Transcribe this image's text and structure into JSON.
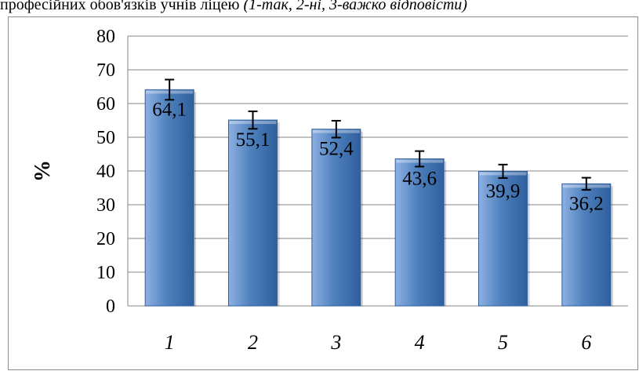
{
  "caption": {
    "text": "професійних обов'язків учнів ліцею ",
    "note": "(1-так, 2-ні, 3-важко відповісти)"
  },
  "colors": {
    "bar_light": "#8db0e3",
    "bar_mid": "#4f81bd",
    "bar_dark": "#2f5f9e",
    "gridline": "#868686",
    "frame": "#8c8c8c"
  },
  "chart_data": {
    "type": "bar",
    "categories": [
      "1",
      "2",
      "3",
      "4",
      "5",
      "6"
    ],
    "values": [
      64.1,
      55.1,
      52.4,
      43.6,
      39.9,
      36.2
    ],
    "value_labels": [
      "64,1",
      "55,1",
      "52,4",
      "43,6",
      "39,9",
      "36,2"
    ],
    "error": [
      3.0,
      2.6,
      2.5,
      2.3,
      2.0,
      1.8
    ],
    "ylabel": "%",
    "xlabel": "",
    "title": "",
    "ylim": [
      0,
      80
    ],
    "yticks": [
      0,
      10,
      20,
      30,
      40,
      50,
      60,
      70,
      80
    ],
    "grid": true,
    "legend": "none"
  }
}
